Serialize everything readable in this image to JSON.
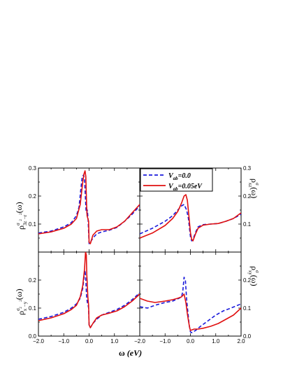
{
  "legend": {
    "dashed_main": "V",
    "dashed_sub": "ab",
    "dashed_value": "=0.0",
    "solid_main": "V",
    "solid_sub": "ab",
    "solid_value": "=0.05eV"
  },
  "labels": {
    "xlabel_omega": "ω",
    "xlabel_unit": " (eV)",
    "left_top_ylabel": "ρ",
    "left_top_sup": "σ",
    "left_top_sub": "3z",
    "left_top_sub2": "−r",
    "left_top_exp": "2",
    "left_top_exp2": "2",
    "left_top_arg": "(ω)",
    "left_bottom_ylabel": "ρ",
    "left_bottom_sup": "σ",
    "left_bottom_sub": "x",
    "left_bottom_sub2": "−y",
    "left_bottom_exp": "2",
    "left_bottom_exp2": "2",
    "left_bottom_arg": "(ω)",
    "right_top_ylabel": "ρ",
    "right_top_sup": "σ",
    "right_top_sub": "xz",
    "right_top_arg": "(ω)",
    "right_bottom_ylabel": "ρ",
    "right_bottom_sup": "σ",
    "right_bottom_sub": "xy",
    "right_bottom_arg": "(ω)"
  },
  "colors": {
    "dashed": "#1a1adb",
    "solid": "#e01010"
  },
  "chart_data": [
    {
      "type": "line",
      "panel": "top-left",
      "xlim": [
        -2.0,
        2.0
      ],
      "ylim": [
        0.0,
        0.3
      ],
      "yticks": [
        "0.1",
        "0.2",
        "0.3"
      ],
      "xticks": [],
      "series": [
        {
          "name": "V_ab=0.0",
          "style": "dashed",
          "x": [
            -2.0,
            -1.5,
            -1.0,
            -0.7,
            -0.5,
            -0.4,
            -0.32,
            -0.27,
            -0.22,
            -0.18,
            -0.15,
            -0.12,
            -0.09,
            -0.07,
            -0.04,
            0.0,
            0.05,
            0.15,
            0.3,
            0.5,
            0.8,
            1.1,
            1.4,
            1.7,
            2.0
          ],
          "y": [
            0.068,
            0.075,
            0.09,
            0.105,
            0.13,
            0.16,
            0.23,
            0.27,
            0.275,
            0.26,
            0.2,
            0.15,
            0.14,
            0.15,
            0.12,
            0.03,
            0.035,
            0.05,
            0.065,
            0.072,
            0.078,
            0.088,
            0.11,
            0.135,
            0.165
          ]
        },
        {
          "name": "V_ab=0.05eV",
          "style": "solid",
          "x": [
            -2.0,
            -1.5,
            -1.0,
            -0.7,
            -0.5,
            -0.35,
            -0.25,
            -0.2,
            -0.16,
            -0.13,
            -0.1,
            -0.08,
            -0.05,
            -0.02,
            0.0,
            0.05,
            0.15,
            0.3,
            0.5,
            0.8,
            1.1,
            1.4,
            1.7,
            2.0
          ],
          "y": [
            0.065,
            0.072,
            0.085,
            0.1,
            0.12,
            0.17,
            0.25,
            0.28,
            0.29,
            0.27,
            0.17,
            0.13,
            0.12,
            0.11,
            0.035,
            0.03,
            0.06,
            0.075,
            0.08,
            0.08,
            0.09,
            0.11,
            0.14,
            0.17
          ]
        }
      ]
    },
    {
      "type": "line",
      "panel": "top-right",
      "xlim": [
        -2.0,
        2.0
      ],
      "ylim": [
        0.0,
        0.3
      ],
      "yticks": [
        "0.1",
        "0.2",
        "0.3"
      ],
      "xticks": [],
      "series": [
        {
          "name": "V_ab=0.0",
          "style": "dashed",
          "x": [
            -2.0,
            -1.5,
            -1.0,
            -0.7,
            -0.5,
            -0.35,
            -0.25,
            -0.15,
            -0.08,
            0.0,
            0.05,
            0.1,
            0.2,
            0.3,
            0.5,
            0.8,
            1.1,
            1.4,
            1.7,
            2.0
          ],
          "y": [
            0.065,
            0.085,
            0.11,
            0.13,
            0.15,
            0.165,
            0.17,
            0.15,
            0.12,
            0.055,
            0.04,
            0.045,
            0.07,
            0.09,
            0.098,
            0.1,
            0.102,
            0.11,
            0.12,
            0.135
          ]
        },
        {
          "name": "V_ab=0.05eV",
          "style": "solid",
          "x": [
            -2.0,
            -1.5,
            -1.0,
            -0.7,
            -0.5,
            -0.35,
            -0.25,
            -0.18,
            -0.12,
            -0.06,
            0.0,
            0.05,
            0.1,
            0.2,
            0.3,
            0.5,
            0.8,
            1.1,
            1.4,
            1.7,
            2.0
          ],
          "y": [
            0.05,
            0.068,
            0.095,
            0.12,
            0.145,
            0.175,
            0.2,
            0.205,
            0.185,
            0.13,
            0.07,
            0.045,
            0.04,
            0.065,
            0.085,
            0.096,
            0.1,
            0.102,
            0.11,
            0.12,
            0.14
          ]
        }
      ]
    },
    {
      "type": "line",
      "panel": "bottom-left",
      "xlim": [
        -2.0,
        2.0
      ],
      "ylim": [
        0.0,
        0.3
      ],
      "yticks": [
        "0.0",
        "0.1",
        "0.2"
      ],
      "xticks": [
        "-2.0",
        "-1.0",
        "0.0",
        "1.0"
      ],
      "series": [
        {
          "name": "V_ab=0.0",
          "style": "dashed",
          "x": [
            -2.0,
            -1.5,
            -1.0,
            -0.7,
            -0.5,
            -0.35,
            -0.25,
            -0.2,
            -0.16,
            -0.13,
            -0.1,
            -0.07,
            -0.05,
            -0.02,
            0.0,
            0.05,
            0.15,
            0.3,
            0.5,
            0.8,
            1.1,
            1.4,
            1.7,
            2.0
          ],
          "y": [
            0.06,
            0.07,
            0.085,
            0.1,
            0.115,
            0.135,
            0.17,
            0.21,
            0.235,
            0.2,
            0.14,
            0.12,
            0.115,
            0.1,
            0.04,
            0.03,
            0.045,
            0.06,
            0.075,
            0.085,
            0.095,
            0.11,
            0.13,
            0.155
          ]
        },
        {
          "name": "V_ab=0.05eV",
          "style": "solid",
          "x": [
            -2.0,
            -1.5,
            -1.0,
            -0.7,
            -0.5,
            -0.35,
            -0.25,
            -0.18,
            -0.14,
            -0.11,
            -0.09,
            -0.07,
            -0.05,
            -0.02,
            0.0,
            0.05,
            0.15,
            0.3,
            0.5,
            0.8,
            1.1,
            1.4,
            1.7,
            2.0
          ],
          "y": [
            0.055,
            0.065,
            0.08,
            0.095,
            0.11,
            0.14,
            0.18,
            0.24,
            0.3,
            0.29,
            0.22,
            0.18,
            0.14,
            0.11,
            0.04,
            0.03,
            0.045,
            0.065,
            0.075,
            0.082,
            0.09,
            0.105,
            0.125,
            0.15
          ]
        }
      ]
    },
    {
      "type": "line",
      "panel": "bottom-right",
      "xlim": [
        -2.0,
        2.0
      ],
      "ylim": [
        0.0,
        0.3
      ],
      "yticks": [
        "0.0",
        "0.1",
        "0.2"
      ],
      "xticks": [
        "-2.0",
        "-1.0",
        "0.0",
        "1.0",
        "2.0"
      ],
      "series": [
        {
          "name": "V_ab=0.0",
          "style": "dashed",
          "x": [
            -2.0,
            -1.7,
            -1.4,
            -1.0,
            -0.7,
            -0.45,
            -0.35,
            -0.3,
            -0.25,
            -0.2,
            -0.15,
            -0.1,
            -0.05,
            0.0,
            0.05,
            0.2,
            0.4,
            0.7,
            1.0,
            1.3,
            1.6,
            2.0
          ],
          "y": [
            0.105,
            0.1,
            0.11,
            0.12,
            0.125,
            0.135,
            0.14,
            0.16,
            0.21,
            0.2,
            0.13,
            0.085,
            0.04,
            0.015,
            0.012,
            0.02,
            0.035,
            0.055,
            0.075,
            0.09,
            0.1,
            0.115
          ]
        },
        {
          "name": "V_ab=0.05eV",
          "style": "solid",
          "x": [
            -2.0,
            -1.7,
            -1.4,
            -1.0,
            -0.7,
            -0.5,
            -0.35,
            -0.25,
            -0.18,
            -0.12,
            -0.07,
            -0.03,
            0.0,
            0.05,
            0.15,
            0.3,
            0.5,
            0.8,
            1.1,
            1.4,
            1.7,
            2.0
          ],
          "y": [
            0.135,
            0.125,
            0.12,
            0.125,
            0.13,
            0.135,
            0.14,
            0.15,
            0.12,
            0.08,
            0.05,
            0.03,
            0.02,
            0.022,
            0.025,
            0.025,
            0.028,
            0.035,
            0.045,
            0.06,
            0.075,
            0.1
          ]
        }
      ]
    }
  ]
}
